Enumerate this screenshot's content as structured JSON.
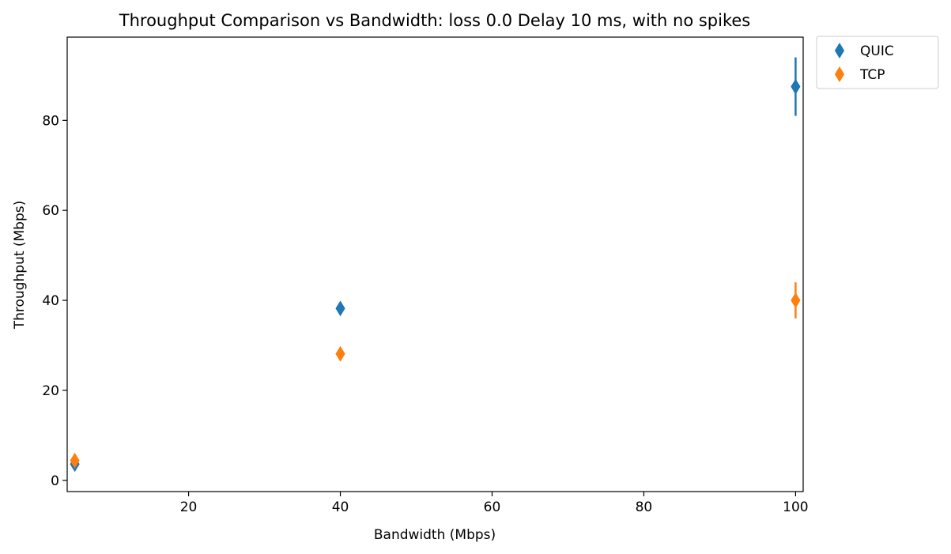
{
  "chart_data": {
    "type": "scatter",
    "title": "Throughput Comparison vs Bandwidth: loss 0.0 Delay 10 ms, with no spikes",
    "xlabel": "Bandwidth (Mbps)",
    "ylabel": "Throughput (Mbps)",
    "xlim": [
      4,
      101
    ],
    "ylim": [
      -2.5,
      98.5
    ],
    "xticks": [
      20,
      40,
      60,
      80,
      100
    ],
    "yticks": [
      0,
      20,
      40,
      60,
      80
    ],
    "grid": false,
    "legend_position": "outside-top-right",
    "marker": "thin-diamond",
    "series": [
      {
        "name": "QUIC",
        "color": "#1f77b4",
        "x": [
          5,
          40,
          100
        ],
        "y": [
          3.6,
          38.2,
          87.5
        ],
        "err": [
          1.2,
          0.8,
          6.5
        ]
      },
      {
        "name": "TCP",
        "color": "#ff7f0e",
        "x": [
          5,
          40,
          100
        ],
        "y": [
          4.4,
          28.1,
          40.0
        ],
        "err": [
          0.8,
          0.8,
          4.0
        ]
      }
    ]
  }
}
